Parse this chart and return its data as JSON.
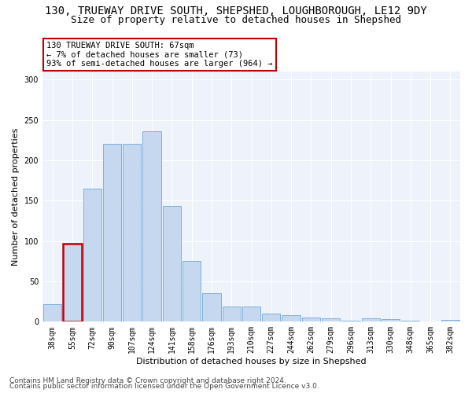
{
  "title1": "130, TRUEWAY DRIVE SOUTH, SHEPSHED, LOUGHBOROUGH, LE12 9DY",
  "title2": "Size of property relative to detached houses in Shepshed",
  "xlabel": "Distribution of detached houses by size in Shepshed",
  "ylabel": "Number of detached properties",
  "categories": [
    "38sqm",
    "55sqm",
    "72sqm",
    "90sqm",
    "107sqm",
    "124sqm",
    "141sqm",
    "158sqm",
    "176sqm",
    "193sqm",
    "210sqm",
    "227sqm",
    "244sqm",
    "262sqm",
    "279sqm",
    "296sqm",
    "313sqm",
    "330sqm",
    "348sqm",
    "365sqm",
    "382sqm"
  ],
  "values": [
    22,
    97,
    165,
    221,
    221,
    236,
    144,
    75,
    35,
    19,
    19,
    10,
    8,
    5,
    4,
    1,
    4,
    3,
    1,
    0,
    2
  ],
  "bar_color": "#c5d8f0",
  "bar_edge_color": "#5b9bd5",
  "highlight_index": 1,
  "highlight_bar_edge_color": "#c00000",
  "annotation_line1": "130 TRUEWAY DRIVE SOUTH: 67sqm",
  "annotation_line2": "← 7% of detached houses are smaller (73)",
  "annotation_line3": "93% of semi-detached houses are larger (964) →",
  "annotation_box_color": "white",
  "annotation_box_edge_color": "#c00000",
  "ylim": [
    0,
    310
  ],
  "yticks": [
    0,
    50,
    100,
    150,
    200,
    250,
    300
  ],
  "footer1": "Contains HM Land Registry data © Crown copyright and database right 2024.",
  "footer2": "Contains public sector information licensed under the Open Government Licence v3.0.",
  "bg_color": "#edf2fb",
  "title1_fontsize": 10,
  "title2_fontsize": 9,
  "axis_label_fontsize": 8,
  "tick_fontsize": 7,
  "annotation_fontsize": 7.5,
  "footer_fontsize": 6.5
}
